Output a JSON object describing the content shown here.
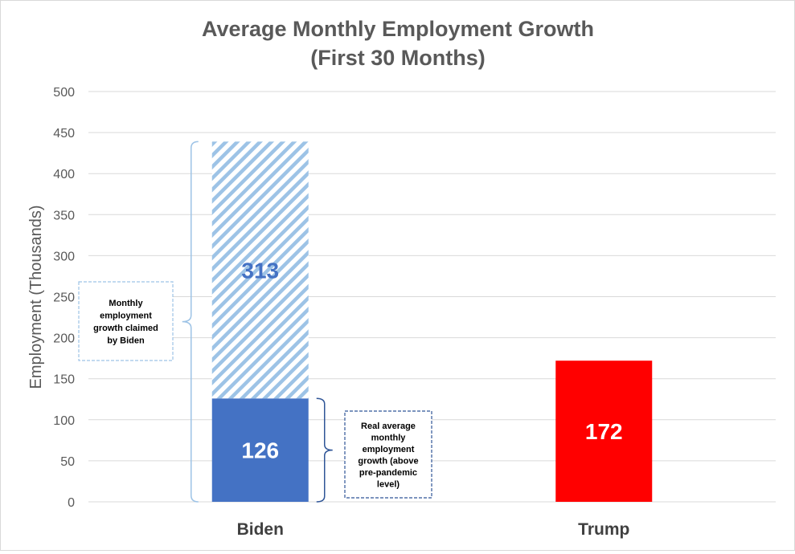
{
  "chart_data": {
    "type": "bar",
    "title": [
      "Average Monthly Employment Growth",
      "(First 30 Months)"
    ],
    "ylabel": "Employment (Thousands)",
    "xlabel": "",
    "ylim": [
      0,
      500
    ],
    "yticks": [
      0,
      50,
      100,
      150,
      200,
      250,
      300,
      350,
      400,
      450,
      500
    ],
    "grid": true,
    "categories": [
      "Biden",
      "Trump"
    ],
    "stacked": true,
    "series": [
      {
        "values": [
          126,
          172
        ],
        "colors": [
          "#4472c4",
          "#ff0000"
        ],
        "labels": [
          "126",
          "172"
        ],
        "label_colors": [
          "#ffffff",
          "#ffffff"
        ]
      },
      {
        "values": [
          313,
          null
        ],
        "colors": [
          "#9dc3e6",
          null
        ],
        "pattern": "diagonal-hatch",
        "labels": [
          "313",
          ""
        ],
        "label_colors": [
          "#4472c4",
          null
        ]
      }
    ],
    "annotations": [
      {
        "text": "Monthly employment growth claimed by Biden",
        "lines": [
          "Monthly",
          "employment",
          "growth claimed",
          "by Biden"
        ],
        "brace_range": [
          0,
          439
        ],
        "color": "#9dc3e6"
      },
      {
        "text": "Real average monthly employment growth (above pre-pandemic level)",
        "lines": [
          "Real average",
          "monthly",
          "employment",
          "growth (above",
          "pre-pandemic",
          "level)"
        ],
        "brace_range": [
          0,
          126
        ],
        "color": "#2f5597"
      }
    ]
  }
}
